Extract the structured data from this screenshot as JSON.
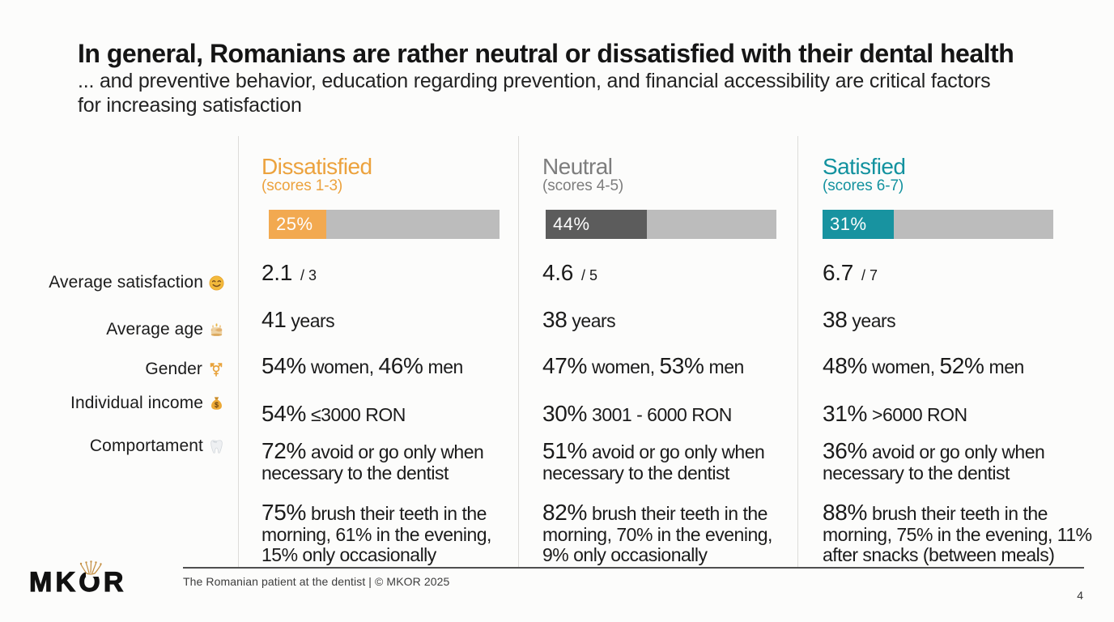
{
  "slide": {
    "title": "In general, Romanians are rather neutral or dissatisfied with their dental health",
    "subtitle_lines": [
      "... and preventive behavior, education regarding prevention, and financial accessibility are critical factors",
      "for increasing satisfaction"
    ]
  },
  "row_labels": [
    {
      "label": "Average satisfaction",
      "icon": "smiling-face-emoji"
    },
    {
      "label": "Average age",
      "icon": "birthday-cake-emoji"
    },
    {
      "label": "Gender",
      "icon": "transgender-symbol-emoji"
    },
    {
      "label": "Individual income",
      "icon": "money-bag-emoji"
    },
    {
      "label": "Comportament",
      "icon": "tooth-emoji"
    }
  ],
  "columns": [
    {
      "heading": "Dissatisfied",
      "subheading": "(scores 1-3)",
      "accent_color": "#eca23d",
      "bar": {
        "percent": 25,
        "label": "25%",
        "fill_color": "#f2a950",
        "track_color": "#bcbcbc"
      },
      "stats": [
        {
          "lines": [
            [
              {
                "k": "b",
                "t": "2.1"
              },
              {
                "k": "x",
                "t": " / 3"
              }
            ]
          ]
        },
        {
          "lines": [
            [
              {
                "k": "b",
                "t": "41"
              },
              {
                "k": "s",
                "t": " years"
              }
            ]
          ]
        },
        {
          "lines": [
            [
              {
                "k": "b",
                "t": "54%"
              },
              {
                "k": "s",
                "t": " women, "
              },
              {
                "k": "b",
                "t": "46%"
              },
              {
                "k": "s",
                "t": " men"
              }
            ]
          ]
        },
        {
          "lines": [
            [
              {
                "k": "b",
                "t": "54%"
              },
              {
                "k": "s",
                "t": " ≤3000 RON"
              }
            ]
          ]
        },
        {
          "lines": [
            [
              {
                "k": "b",
                "t": "72%"
              },
              {
                "k": "s",
                "t": " avoid or go only when"
              }
            ],
            [
              {
                "k": "s",
                "t": "necessary to the dentist"
              }
            ]
          ]
        },
        {
          "lines": [
            [
              {
                "k": "b",
                "t": "75%"
              },
              {
                "k": "s",
                "t": " brush their teeth in the"
              }
            ],
            [
              {
                "k": "s",
                "t": "morning, 61% in the evening,"
              }
            ],
            [
              {
                "k": "s",
                "t": "15% only occasionally"
              }
            ]
          ]
        }
      ]
    },
    {
      "heading": "Neutral",
      "subheading": "(scores 4-5)",
      "accent_color": "#7d7d7d",
      "bar": {
        "percent": 44,
        "label": "44%",
        "fill_color": "#5c5c5c",
        "track_color": "#bcbcbc"
      },
      "stats": [
        {
          "lines": [
            [
              {
                "k": "b",
                "t": "4.6"
              },
              {
                "k": "x",
                "t": " / 5"
              }
            ]
          ]
        },
        {
          "lines": [
            [
              {
                "k": "b",
                "t": "38"
              },
              {
                "k": "s",
                "t": " years"
              }
            ]
          ]
        },
        {
          "lines": [
            [
              {
                "k": "b",
                "t": "47%"
              },
              {
                "k": "s",
                "t": " women, "
              },
              {
                "k": "b",
                "t": "53%"
              },
              {
                "k": "s",
                "t": " men"
              }
            ]
          ]
        },
        {
          "lines": [
            [
              {
                "k": "b",
                "t": "30%"
              },
              {
                "k": "s",
                "t": " 3001 - 6000 RON"
              }
            ]
          ]
        },
        {
          "lines": [
            [
              {
                "k": "b",
                "t": "51%"
              },
              {
                "k": "s",
                "t": " avoid or go only when"
              }
            ],
            [
              {
                "k": "s",
                "t": "necessary to the dentist"
              }
            ]
          ]
        },
        {
          "lines": [
            [
              {
                "k": "b",
                "t": "82%"
              },
              {
                "k": "s",
                "t": " brush their teeth in the"
              }
            ],
            [
              {
                "k": "s",
                "t": "morning, 70% in the evening,"
              }
            ],
            [
              {
                "k": "s",
                "t": "9% only occasionally"
              }
            ]
          ]
        }
      ]
    },
    {
      "heading": "Satisfied",
      "subheading": "(scores 6-7)",
      "accent_color": "#13929f",
      "bar": {
        "percent": 31,
        "label": "31%",
        "fill_color": "#1893a0",
        "track_color": "#bcbcbc"
      },
      "stats": [
        {
          "lines": [
            [
              {
                "k": "b",
                "t": "6.7"
              },
              {
                "k": "x",
                "t": " / 7"
              }
            ]
          ]
        },
        {
          "lines": [
            [
              {
                "k": "b",
                "t": "38"
              },
              {
                "k": "s",
                "t": " years"
              }
            ]
          ]
        },
        {
          "lines": [
            [
              {
                "k": "b",
                "t": "48%"
              },
              {
                "k": "s",
                "t": " women, "
              },
              {
                "k": "b",
                "t": "52%"
              },
              {
                "k": "s",
                "t": " men"
              }
            ]
          ]
        },
        {
          "lines": [
            [
              {
                "k": "b",
                "t": "31%"
              },
              {
                "k": "s",
                "t": " >6000 RON"
              }
            ]
          ]
        },
        {
          "lines": [
            [
              {
                "k": "b",
                "t": "36%"
              },
              {
                "k": "s",
                "t": " avoid or go only when"
              }
            ],
            [
              {
                "k": "s",
                "t": "necessary to the dentist"
              }
            ]
          ]
        },
        {
          "lines": [
            [
              {
                "k": "b",
                "t": "88%"
              },
              {
                "k": "s",
                "t": " brush their teeth in the"
              }
            ],
            [
              {
                "k": "s",
                "t": "morning, 75% in the evening, 11%"
              }
            ],
            [
              {
                "k": "s",
                "t": "after snacks (between meals)"
              }
            ]
          ]
        }
      ]
    }
  ],
  "footer": {
    "logo_text": "MKOR",
    "source_line": "The Romanian patient at the dentist | © MKOR 2025",
    "page_number": "4"
  },
  "chart_data": {
    "type": "bar",
    "title": "In general, Romanians are rather neutral or dissatisfied with their dental health",
    "categories": [
      "Dissatisfied (scores 1-3)",
      "Neutral (scores 4-5)",
      "Satisfied (scores 6-7)"
    ],
    "values": [
      25,
      44,
      31
    ],
    "unit": "%",
    "xlim": [
      0,
      100
    ],
    "colors": [
      "#f2a950",
      "#5c5c5c",
      "#1893a0"
    ],
    "stats_table": {
      "row_labels": [
        "Average satisfaction",
        "Average age",
        "Gender",
        "Individual income",
        "Comportament (dentist visits)",
        "Comportament (brushing)"
      ],
      "series": [
        {
          "name": "Dissatisfied (scores 1-3)",
          "values": [
            "2.1 / 3",
            "41 years",
            "54% women, 46% men",
            "54% ≤3000 RON",
            "72% avoid or go only when necessary to the dentist",
            "75% brush their teeth in the morning, 61% in the evening, 15% only occasionally"
          ]
        },
        {
          "name": "Neutral (scores 4-5)",
          "values": [
            "4.6 / 5",
            "38 years",
            "47% women, 53% men",
            "30% 3001 - 6000 RON",
            "51% avoid or go only when necessary to the dentist",
            "82% brush their teeth in the morning, 70% in the evening, 9% only occasionally"
          ]
        },
        {
          "name": "Satisfied (scores 6-7)",
          "values": [
            "6.7 / 7",
            "38 years",
            "48% women, 52% men",
            "31% >6000 RON",
            "36% avoid or go only when necessary to the dentist",
            "88% brush their teeth in the morning, 75% in the evening, 11% after snacks (between meals)"
          ]
        }
      ]
    }
  }
}
